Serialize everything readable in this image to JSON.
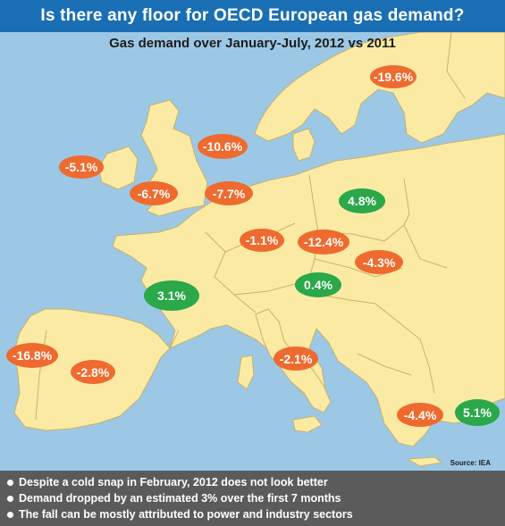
{
  "header": {
    "title": "Is there any floor for OECD European gas demand?",
    "subtitle": "Gas demand over January-July, 2012 vs 2011"
  },
  "map": {
    "source": "Source: IEA",
    "colors": {
      "sea": "#9cc8e6",
      "land": "#fbeaa4",
      "border": "#c7b26a",
      "negative": "#ef6a2e",
      "positive": "#2aa84a"
    },
    "labels": [
      {
        "text": "-19.6%",
        "sign": "negative"
      },
      {
        "text": "-10.6%",
        "sign": "negative"
      },
      {
        "text": "-5.1%",
        "sign": "negative"
      },
      {
        "text": "-6.7%",
        "sign": "negative"
      },
      {
        "text": "-7.7%",
        "sign": "negative"
      },
      {
        "text": "4.8%",
        "sign": "positive"
      },
      {
        "text": "-1.1%",
        "sign": "negative"
      },
      {
        "text": "-12.4%",
        "sign": "negative"
      },
      {
        "text": "-4.3%",
        "sign": "negative"
      },
      {
        "text": "3.1%",
        "sign": "positive"
      },
      {
        "text": "0.4%",
        "sign": "positive"
      },
      {
        "text": "-16.8%",
        "sign": "negative"
      },
      {
        "text": "-2.8%",
        "sign": "negative"
      },
      {
        "text": "-2.1%",
        "sign": "negative"
      },
      {
        "text": "-4.4%",
        "sign": "negative"
      },
      {
        "text": "5.1%",
        "sign": "positive"
      }
    ]
  },
  "footer": {
    "bullets": [
      "Despite a cold snap in February, 2012 does not look better",
      "Demand dropped by an estimated 3% over the first 7 months",
      "The fall can be mostly attributed to power and industry sectors"
    ]
  }
}
